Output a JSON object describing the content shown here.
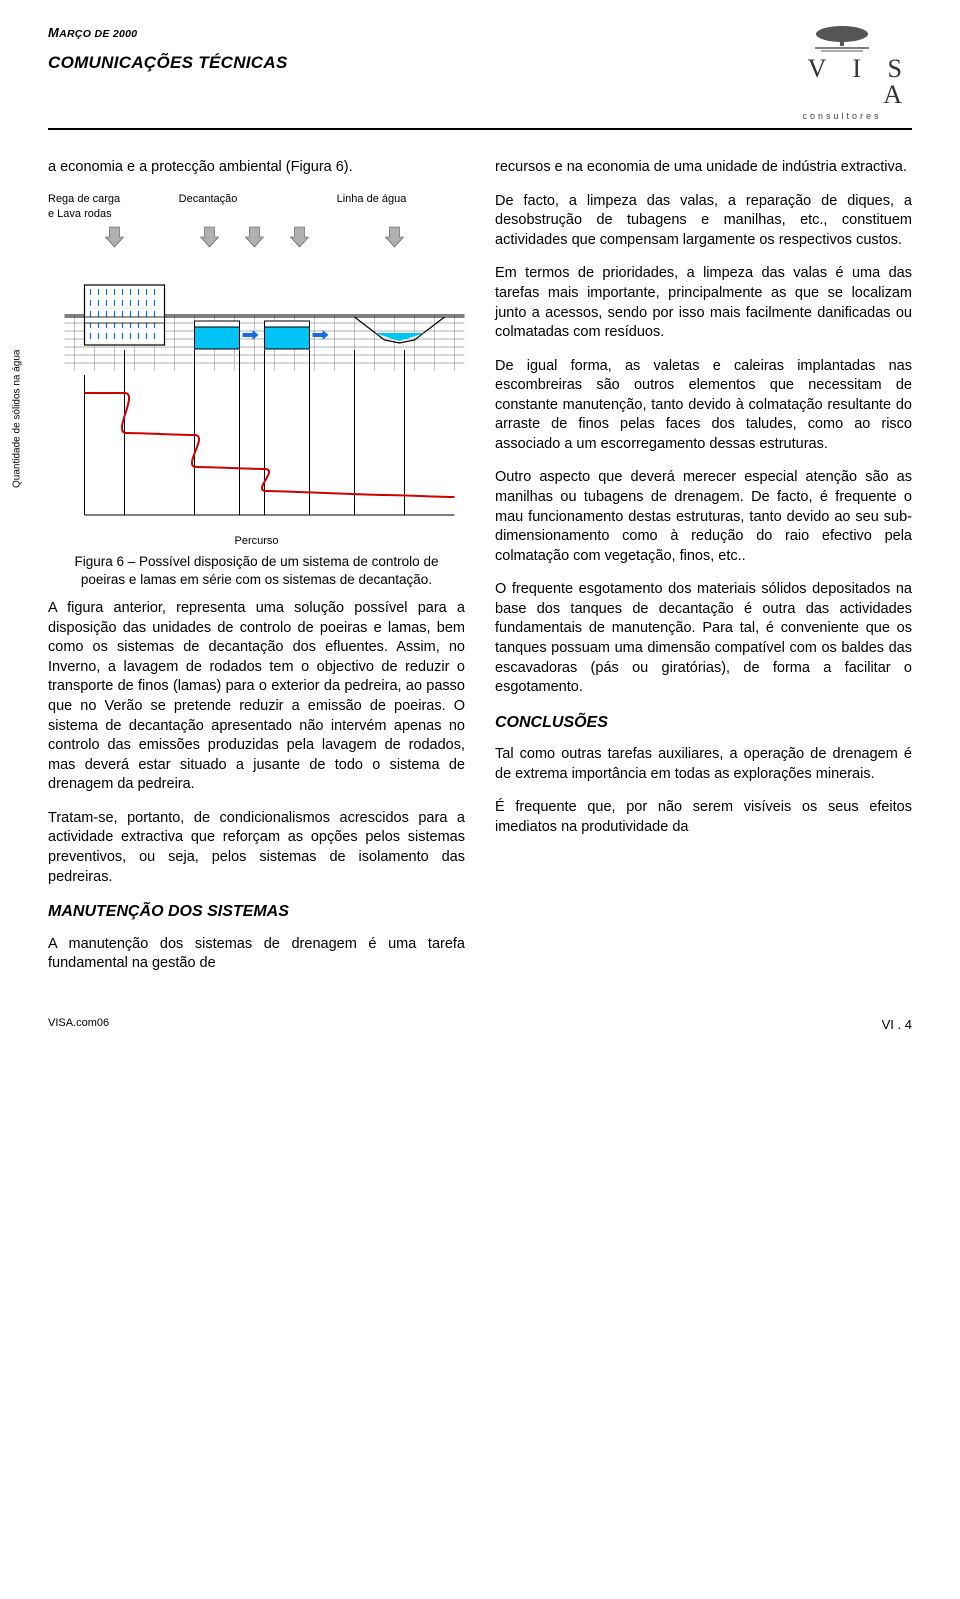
{
  "header": {
    "date_pre": "M",
    "date_rest": "ARÇO DE 2000",
    "subtitle": "COMUNICAÇÕES TÉCNICAS",
    "logo_name": "V I S A",
    "logo_sub": "consultores"
  },
  "left": {
    "p1": "a economia e a protecção ambiental (Figura 6).",
    "fig_labels": {
      "l1a": "Rega de carga",
      "l1b": "e Lava rodas",
      "l2": "Decantação",
      "l3": "Linha de água"
    },
    "fig_ylabel": "Quantidade de sólidos na água",
    "fig_xlabel": "Percurso",
    "fig_caption": "Figura 6 – Possível disposição de um sistema de controlo de poeiras e lamas em série com os sistemas de decantação.",
    "p2": "A figura anterior, representa uma solução possível para a disposição das unidades de controlo de poeiras e lamas, bem como os sistemas de decantação dos efluentes. Assim, no Inverno, a lavagem de rodados tem o objectivo de reduzir o transporte de finos (lamas) para o exterior da pedreira, ao passo que no Verão se pretende reduzir a emissão de poeiras. O sistema de decantação apresentado não intervém apenas no controlo das emissões produzidas pela lavagem de rodados, mas deverá estar situado a jusante de todo o sistema de drenagem da pedreira.",
    "p3": "Tratam-se, portanto, de condicionalismos acrescidos para a actividade extractiva que reforçam as opções pelos sistemas preventivos, ou seja, pelos sistemas de isolamento das pedreiras.",
    "h1": "MANUTENÇÃO DOS SISTEMAS",
    "p4": "A manutenção dos sistemas de drenagem é uma tarefa fundamental na gestão de"
  },
  "right": {
    "p1": "recursos e na economia de uma unidade de indústria extractiva.",
    "p2": "De facto, a limpeza das valas, a reparação de diques, a desobstrução de tubagens e manilhas, etc., constituem actividades que compensam largamente os respectivos custos.",
    "p3": "Em termos de prioridades, a limpeza das valas é uma das tarefas mais importante, principalmente as que se localizam junto a acessos, sendo por isso mais facilmente danificadas ou colmatadas com resíduos.",
    "p4": "De igual forma, as valetas e caleiras implantadas nas escombreiras são outros elementos que necessitam de constante manutenção, tanto devido à colmatação resultante do arraste de finos pelas faces dos taludes, como ao risco associado a um escorregamento dessas estruturas.",
    "p5": "Outro aspecto que deverá merecer especial atenção são as manilhas ou tubagens de drenagem. De facto, é frequente o mau funcionamento destas estruturas, tanto devido ao seu sub-dimensionamento como à redução do raio efectivo pela colmatação com vegetação, finos, etc..",
    "p6": "O frequente esgotamento dos materiais sólidos depositados na base dos tanques de decantação é outra das actividades fundamentais de manutenção. Para tal, é conveniente que os tanques possuam uma dimensão compatível com os baldes das escavadoras (pás ou giratórias), de forma a facilitar o esgotamento.",
    "h1": "CONCLUSÕES",
    "p7": "Tal como outras tarefas auxiliares, a operação de drenagem é de extrema importância em todas as explorações minerais.",
    "p8": "É frequente que, por não serem visíveis os seus efeitos imediatos na produtividade da"
  },
  "footer": {
    "left": "VISA.com06",
    "right": "VI . 4"
  },
  "fig": {
    "bg": "#ffffff",
    "brick_stroke": "#9a9a9a",
    "tank_fill": "#00c4f5",
    "tank_stroke": "#000000",
    "rain_stroke": "#1a6de0",
    "surface_stroke": "#000000",
    "pipe_stroke": "#000000",
    "arrow_fill": "#b0b0b0",
    "arrow_blue": "#1a6de0",
    "curve_stroke": "#d10000",
    "axis_stroke": "#000000"
  }
}
